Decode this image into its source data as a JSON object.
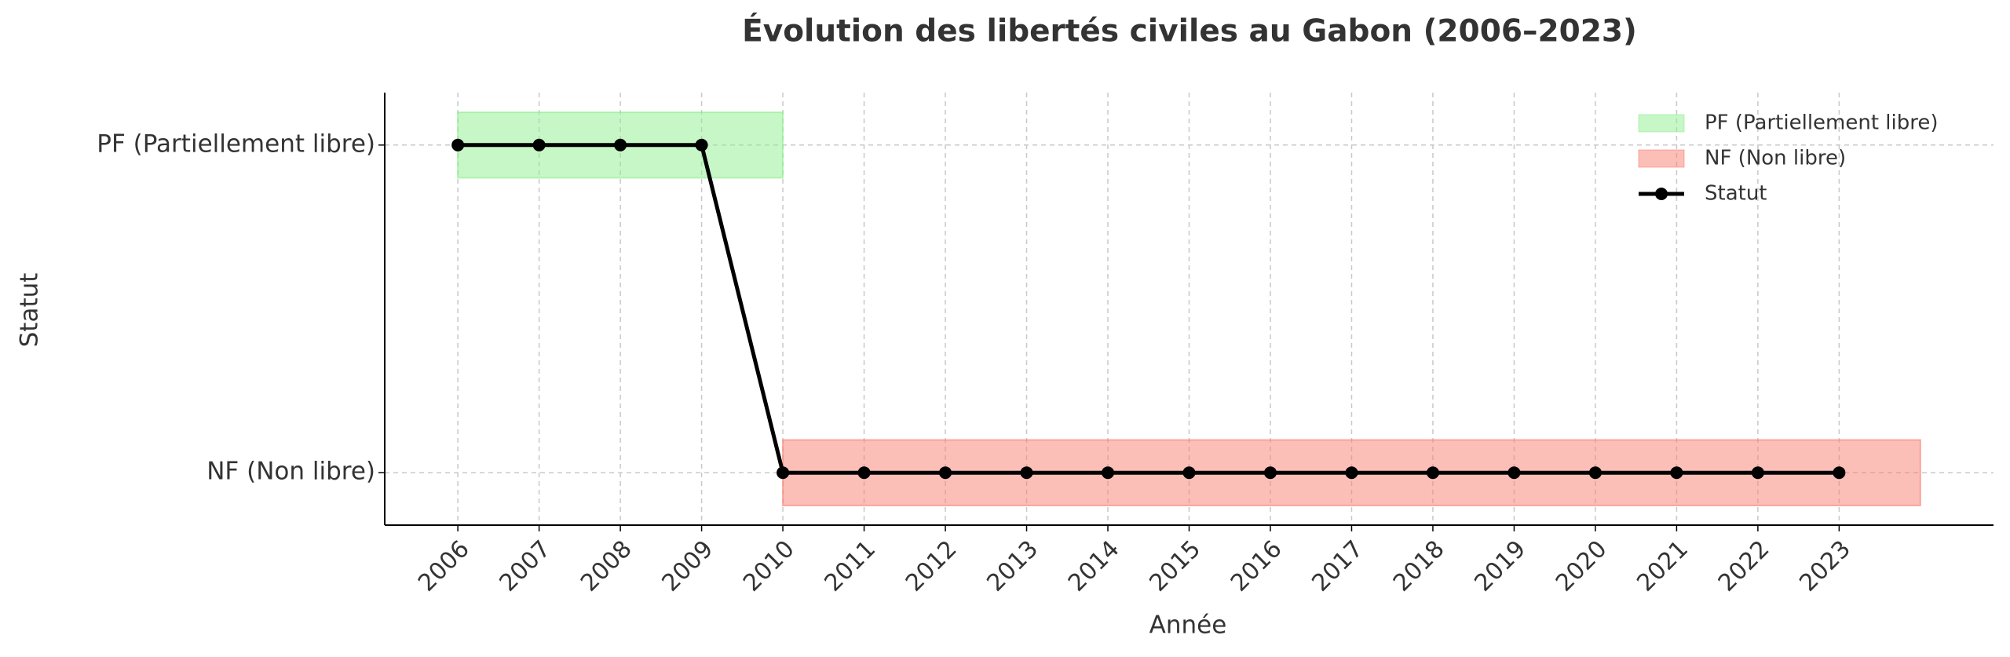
{
  "chart_data": {
    "type": "line",
    "title": "Évolution des libertés civiles au Gabon (2006–2023)",
    "x_label": "Année",
    "y_label": "Statut",
    "x": [
      2006,
      2007,
      2008,
      2009,
      2010,
      2011,
      2012,
      2013,
      2014,
      2015,
      2016,
      2017,
      2018,
      2019,
      2020,
      2021,
      2022,
      2023
    ],
    "series": [
      {
        "name": "Statut",
        "color": "#000000",
        "values": [
          1,
          1,
          1,
          1,
          0,
          0,
          0,
          0,
          0,
          0,
          0,
          0,
          0,
          0,
          0,
          0,
          0,
          0
        ]
      }
    ],
    "bands": [
      {
        "name": "PF (Partiellement libre)",
        "color": "#90ee90",
        "x": [
          2006,
          2010
        ],
        "y": [
          0.9,
          1.1
        ]
      },
      {
        "name": "NF (Non libre)",
        "color": "#fa8072",
        "x": [
          2010,
          2024
        ],
        "y": [
          -0.1,
          0.1
        ]
      }
    ],
    "xlim": [
      2005.1,
      2024.9
    ],
    "xticks": [
      2006,
      2007,
      2008,
      2009,
      2010,
      2011,
      2012,
      2013,
      2014,
      2015,
      2016,
      2017,
      2018,
      2019,
      2020,
      2021,
      2022,
      2023
    ],
    "ylim": [
      -0.16,
      1.16
    ],
    "yticks": [
      {
        "value": 0,
        "label": "NF (Non libre)"
      },
      {
        "value": 1,
        "label": "PF (Partiellement libre)"
      }
    ],
    "grid": true,
    "legend": "upper right"
  }
}
